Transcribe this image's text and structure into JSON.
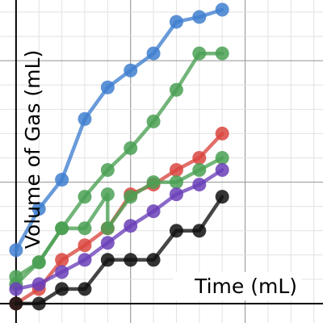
{
  "chart_data": {
    "type": "line",
    "xlabel": "Time (mL)",
    "ylabel": "Volume of Gas (mL)",
    "title": "",
    "xlim": [
      -0.7,
      13.4
    ],
    "ylim": [
      -0.8,
      12.5
    ],
    "grid": true,
    "series": [
      {
        "color": "#3f7fcf",
        "points": [
          [
            0,
            2.2
          ],
          [
            1,
            3.9
          ],
          [
            2,
            5.1
          ],
          [
            3,
            7.6
          ],
          [
            4,
            8.9
          ],
          [
            5,
            9.6
          ],
          [
            6,
            10.3
          ],
          [
            7,
            11.6
          ],
          [
            8,
            11.8
          ],
          [
            9,
            12.1
          ]
        ]
      },
      {
        "color": "#4aa053",
        "points": [
          [
            0,
            0.8
          ],
          [
            1,
            1.7
          ],
          [
            2,
            3.1
          ],
          [
            3,
            4.4
          ],
          [
            4,
            5.5
          ],
          [
            5,
            6.4
          ],
          [
            6,
            7.5
          ],
          [
            7,
            8.8
          ],
          [
            8,
            10.3
          ],
          [
            9,
            10.3
          ]
        ]
      },
      {
        "color": "#d9473f",
        "points": [
          [
            0,
            0
          ],
          [
            1,
            0.6
          ],
          [
            2,
            1.8
          ],
          [
            3,
            2.4
          ],
          [
            4,
            3.1
          ],
          [
            5,
            4.5
          ],
          [
            6,
            4.9
          ],
          [
            7,
            5.5
          ],
          [
            8,
            6.0
          ],
          [
            9,
            7.0
          ]
        ]
      },
      {
        "color": "#4aa053",
        "points": [
          [
            0,
            1.1
          ],
          [
            1,
            1.7
          ],
          [
            2,
            3.1
          ],
          [
            3,
            3.1
          ],
          [
            4,
            4.5
          ],
          [
            4,
            3.1
          ],
          [
            5,
            4.4
          ],
          [
            6,
            5.0
          ],
          [
            7,
            5.0
          ],
          [
            8,
            5.5
          ],
          [
            9,
            6.0
          ]
        ]
      },
      {
        "color": "#6a3fb8",
        "points": [
          [
            0,
            0.6
          ],
          [
            1,
            0.8
          ],
          [
            2,
            1.3
          ],
          [
            3,
            1.8
          ],
          [
            4,
            2.5
          ],
          [
            5,
            3.2
          ],
          [
            6,
            3.8
          ],
          [
            7,
            4.5
          ],
          [
            8,
            4.9
          ],
          [
            9,
            5.5
          ]
        ]
      },
      {
        "color": "#111111",
        "points": [
          [
            0,
            0
          ],
          [
            1,
            0
          ],
          [
            2,
            0.6
          ],
          [
            3,
            0.6
          ],
          [
            4,
            1.8
          ],
          [
            5,
            1.8
          ],
          [
            6,
            1.8
          ],
          [
            7,
            3.0
          ],
          [
            8,
            3.0
          ],
          [
            9,
            4.4
          ]
        ]
      }
    ]
  }
}
